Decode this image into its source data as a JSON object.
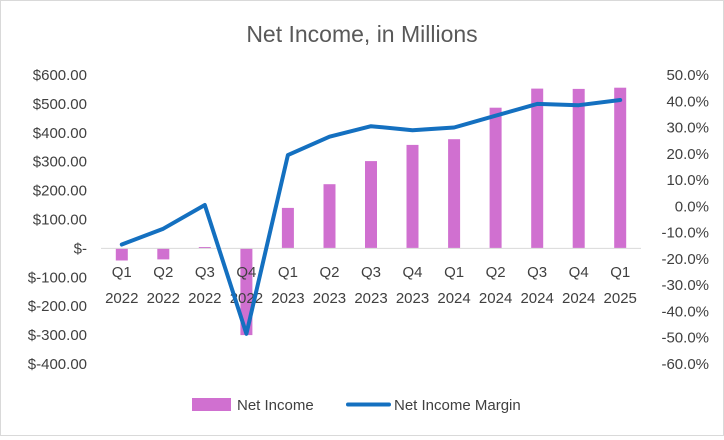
{
  "chart_data": {
    "type": "bar",
    "title": "Net Income, in Millions",
    "categories": [
      [
        "Q1",
        "2022"
      ],
      [
        "Q2",
        "2022"
      ],
      [
        "Q3",
        "2022"
      ],
      [
        "Q4",
        "2022"
      ],
      [
        "Q1",
        "2023"
      ],
      [
        "Q2",
        "2023"
      ],
      [
        "Q3",
        "2023"
      ],
      [
        "Q4",
        "2023"
      ],
      [
        "Q1",
        "2024"
      ],
      [
        "Q2",
        "2024"
      ],
      [
        "Q3",
        "2024"
      ],
      [
        "Q4",
        "2024"
      ],
      [
        "Q1",
        "2025"
      ]
    ],
    "series": [
      {
        "name": "Net Income",
        "type": "bar",
        "axis": "left",
        "color": "#d070d0",
        "values": [
          -42,
          -38,
          5,
          -300,
          140,
          222,
          302,
          358,
          378,
          487,
          553,
          552,
          556
        ]
      },
      {
        "name": "Net Income Margin",
        "type": "line",
        "axis": "right",
        "color": "#1470c0",
        "values": [
          -14.5,
          -8.5,
          0.5,
          -48.5,
          19.5,
          26.5,
          30.5,
          29.0,
          30.0,
          34.5,
          39.0,
          38.5,
          40.5
        ]
      }
    ],
    "y_left": {
      "range": [
        -400,
        600
      ],
      "ticks": [
        600,
        500,
        400,
        300,
        200,
        100,
        0,
        -100,
        -200,
        -300,
        -400
      ],
      "tick_labels": [
        "$600.00",
        "$500.00",
        "$400.00",
        "$300.00",
        "$200.00",
        "$100.00",
        "$-",
        "$-100.00",
        "$-200.00",
        "$-300.00",
        "$-400.00"
      ]
    },
    "y_right": {
      "range": [
        -60,
        50
      ],
      "ticks": [
        50,
        40,
        30,
        20,
        10,
        0,
        -10,
        -20,
        -30,
        -40,
        -50,
        -60
      ],
      "tick_labels": [
        "50.0%",
        "40.0%",
        "30.0%",
        "20.0%",
        "10.0%",
        "0.0%",
        "-10.0%",
        "-20.0%",
        "-30.0%",
        "-40.0%",
        "-50.0%",
        "-60.0%"
      ]
    },
    "grid": false,
    "legend": "bottom"
  }
}
